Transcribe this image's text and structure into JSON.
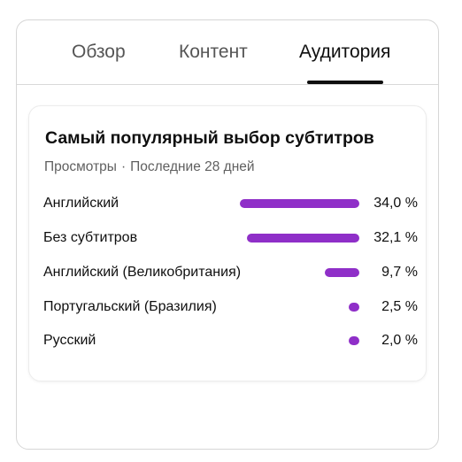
{
  "tabs": [
    {
      "label": "Обзор",
      "active": false
    },
    {
      "label": "Контент",
      "active": false
    },
    {
      "label": "Аудитория",
      "active": true
    }
  ],
  "card": {
    "title": "Самый популярный выбор субтитров",
    "subtitle_metric": "Просмотры",
    "subtitle_separator": "·",
    "subtitle_period": "Последние 28 дней"
  },
  "colors": {
    "bar": "#8f2fc8"
  },
  "rows": [
    {
      "label": "Английский",
      "value": 34.0,
      "value_text": "34,0 %"
    },
    {
      "label": "Без субтитров",
      "value": 32.1,
      "value_text": "32,1 %"
    },
    {
      "label": "Английский (Великобритания)",
      "value": 9.7,
      "value_text": "9,7 %"
    },
    {
      "label": "Португальский (Бразилия)",
      "value": 2.5,
      "value_text": "2,5 %"
    },
    {
      "label": "Русский",
      "value": 2.0,
      "value_text": "2,0 %"
    }
  ]
}
